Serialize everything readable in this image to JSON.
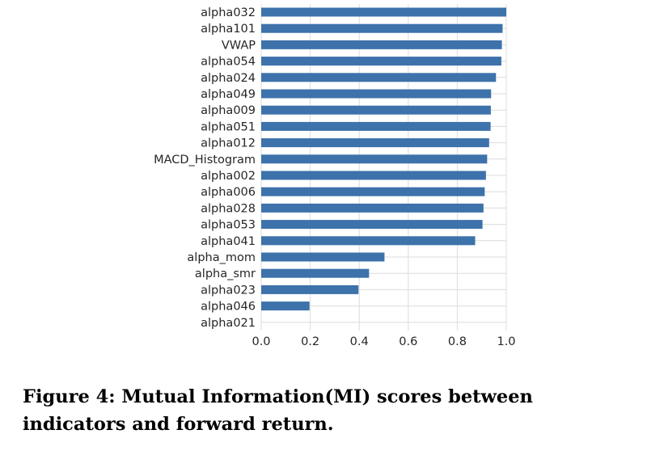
{
  "caption": "Figure 4: Mutual Information(MI) scores between indicators and forward return.",
  "chart_data": {
    "type": "bar",
    "orientation": "horizontal",
    "categories": [
      "alpha032",
      "alpha101",
      "VWAP",
      "alpha054",
      "alpha024",
      "alpha049",
      "alpha009",
      "alpha051",
      "alpha012",
      "MACD_Histogram",
      "alpha002",
      "alpha006",
      "alpha028",
      "alpha053",
      "alpha041",
      "alpha_mom",
      "alpha_smr",
      "alpha023",
      "alpha046",
      "alpha021"
    ],
    "values": [
      1.0,
      0.985,
      0.982,
      0.98,
      0.958,
      0.938,
      0.937,
      0.936,
      0.93,
      0.922,
      0.917,
      0.912,
      0.907,
      0.903,
      0.873,
      0.503,
      0.44,
      0.397,
      0.197,
      0.0
    ],
    "title": "",
    "xlabel": "",
    "ylabel": "",
    "xlim": [
      0.0,
      1.0
    ],
    "xticks": [
      "0.0",
      "0.2",
      "0.4",
      "0.6",
      "0.8",
      "1.0"
    ],
    "grid": true,
    "bar_color": "#3d72ab",
    "grid_color": "#dcdcdc"
  }
}
